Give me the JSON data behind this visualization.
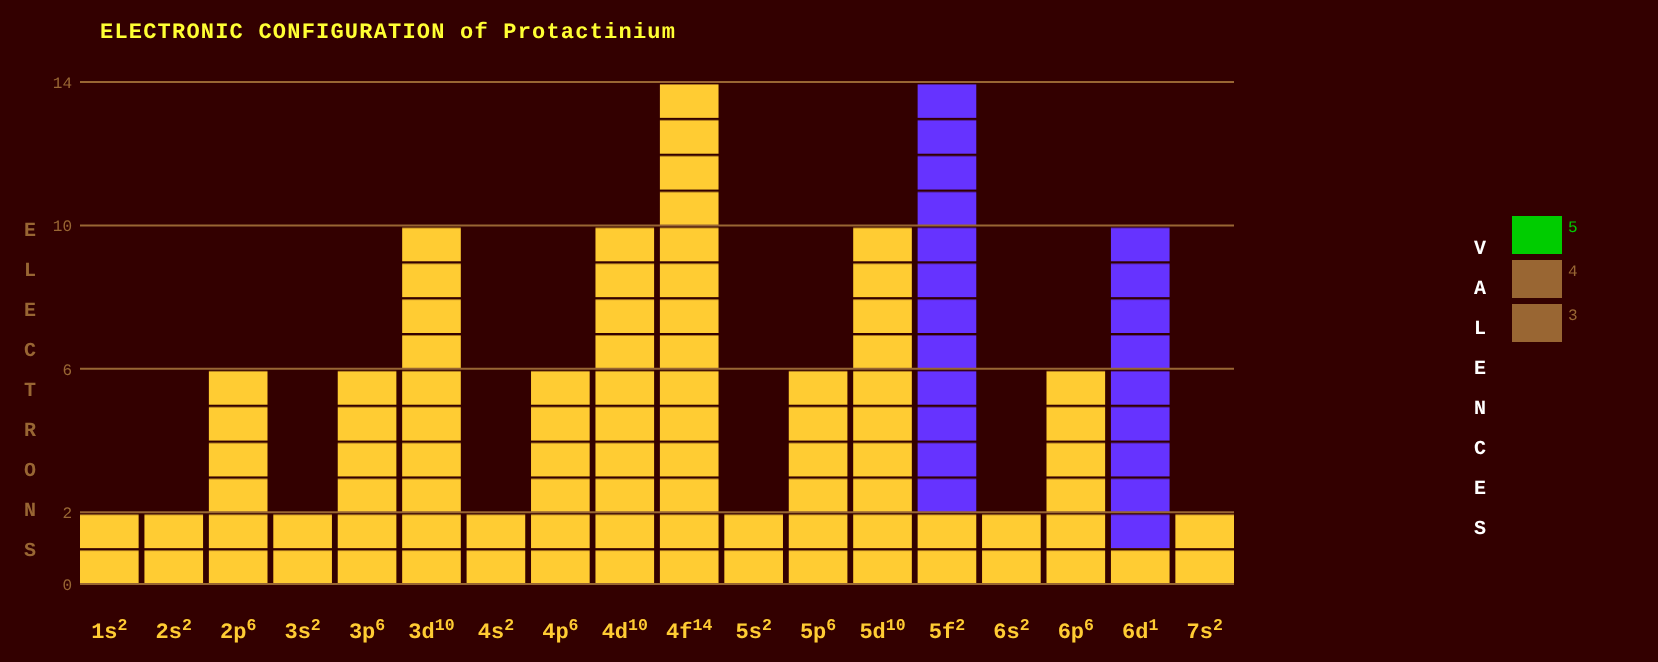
{
  "chart_data": [
    {
      "type": "bar",
      "title": "ELECTRONIC CONFIGURATION of Protactinium",
      "ylabel": "ELECTRONS",
      "categories": [
        "1s$^{2}$",
        "2s$^{2}$",
        "2p$^{6}$",
        "3s$^{2}$",
        "3p$^{6}$",
        "3d$^{10}$",
        "4s$^{2}$",
        "4p$^{6}$",
        "4d$^{10}$",
        "4f$^{14}$",
        "5s$^{2}$",
        "5p$^{6}$",
        "5d$^{10}$",
        "5f$^{2}$",
        "6s$^{2}$",
        "6p$^{6}$",
        "6d$^{1}$",
        "7s$^{2}$"
      ],
      "series": [
        {
          "color": "#ffcc33",
          "values": [
            2,
            2,
            6,
            2,
            6,
            10,
            2,
            6,
            10,
            14,
            2,
            6,
            10,
            2,
            2,
            6,
            1,
            2
          ]
        },
        {
          "color": "#6633ff",
          "values": [
            null,
            null,
            null,
            null,
            null,
            null,
            null,
            null,
            null,
            null,
            null,
            null,
            null,
            12,
            null,
            null,
            9,
            null
          ]
        }
      ],
      "stacked": true,
      "ylim": [
        0,
        14
      ],
      "yticks": [
        0,
        2,
        6,
        10,
        14
      ],
      "grid": "y"
    },
    {
      "type": "other",
      "title": "VALENCES",
      "categories": [
        "5",
        "4",
        "3"
      ],
      "colors": [
        "#00cc00",
        "#996633",
        "#996633"
      ]
    }
  ]
}
